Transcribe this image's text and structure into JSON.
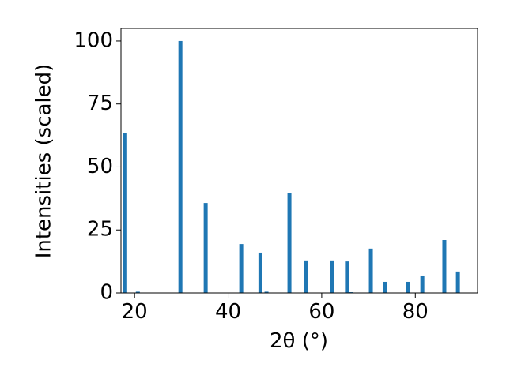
{
  "chart_data": {
    "type": "bar",
    "x_label": "2θ (°)",
    "y_label": "Intensities (scaled)",
    "color": "#1f77b4",
    "x": [
      18.0,
      20.7,
      29.8,
      35.2,
      42.8,
      46.9,
      48.2,
      53.1,
      56.7,
      62.2,
      65.4,
      66.3,
      70.5,
      73.5,
      78.4,
      81.5,
      86.2,
      89.1
    ],
    "values": [
      63.6,
      0.5,
      100,
      35.7,
      19.4,
      16.0,
      0.5,
      39.8,
      12.9,
      12.9,
      12.5,
      0.3,
      17.6,
      4.4,
      4.4,
      6.9,
      21.0,
      8.5
    ],
    "xlim": [
      17.1,
      93.3
    ],
    "ylim": [
      0,
      105
    ],
    "xticks": [
      20,
      40,
      60,
      80
    ],
    "yticks": [
      0,
      25,
      50,
      75,
      100
    ],
    "grid": false
  }
}
